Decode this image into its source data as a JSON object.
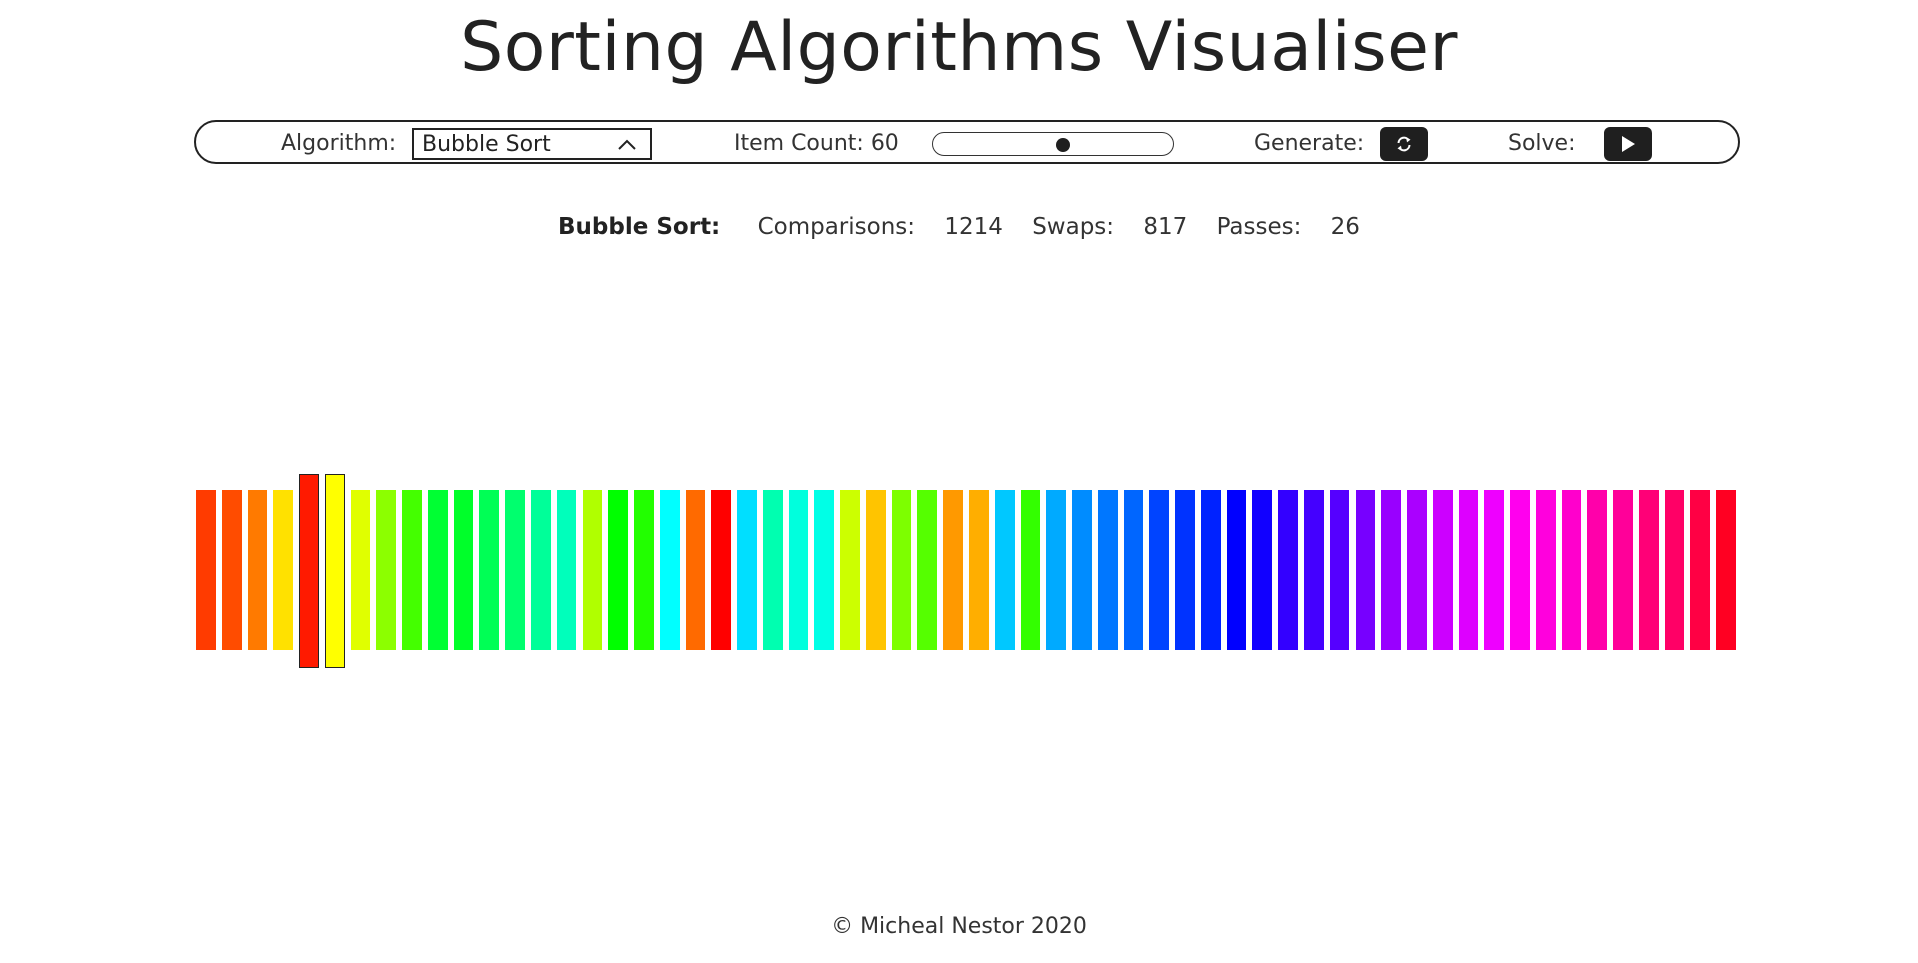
{
  "header": {
    "title": "Sorting Algorithms Visualiser"
  },
  "controls": {
    "algorithm_label": "Algorithm:",
    "algorithm_selected": "Bubble Sort",
    "item_count_label": "Item Count: 60",
    "item_count_value": 60,
    "slider_fraction": 0.55,
    "generate_label": "Generate:",
    "solve_label": "Solve:",
    "icons": {
      "dropdown": "chevron-up-icon",
      "generate": "refresh-icon",
      "solve": "play-icon"
    }
  },
  "stats": {
    "algorithm": "Bubble Sort:",
    "comparisons_label": "Comparisons:",
    "comparisons_value": "1214",
    "swaps_label": "Swaps:",
    "swaps_value": "817",
    "passes_label": "Passes:",
    "passes_value": "26"
  },
  "bars": {
    "highlight_indices": [
      4,
      5
    ],
    "colors": [
      "#ff3b00",
      "#ff4c00",
      "#ff7a00",
      "#ffe100",
      "#ff1a00",
      "#ffff00",
      "#e0ff00",
      "#8cff00",
      "#44ff00",
      "#00ff33",
      "#00ff2a",
      "#00ff55",
      "#00ff6e",
      "#00ff99",
      "#00ffbb",
      "#b0ff00",
      "#00ff00",
      "#22ff00",
      "#00ffff",
      "#ff6a00",
      "#ff0000",
      "#00dfff",
      "#00ffb0",
      "#00ffdd",
      "#00ffe6",
      "#ccff00",
      "#ffc400",
      "#7dff00",
      "#55ff00",
      "#ff9900",
      "#ffae00",
      "#00c8ff",
      "#33ff00",
      "#00aaff",
      "#008cff",
      "#0077ff",
      "#0066ff",
      "#0044ff",
      "#0033ff",
      "#0022ff",
      "#0000ff",
      "#1100ff",
      "#3300ff",
      "#4400ff",
      "#5500ff",
      "#7700ff",
      "#9900ff",
      "#aa00ff",
      "#cc00ff",
      "#dd00ff",
      "#ee00ff",
      "#ff00ee",
      "#ff00dd",
      "#ff00cc",
      "#ff00aa",
      "#ff0099",
      "#ff0077",
      "#ff0066",
      "#ff0044",
      "#ff0022"
    ]
  },
  "footer": {
    "copyright": "© Micheal Nestor 2020"
  }
}
